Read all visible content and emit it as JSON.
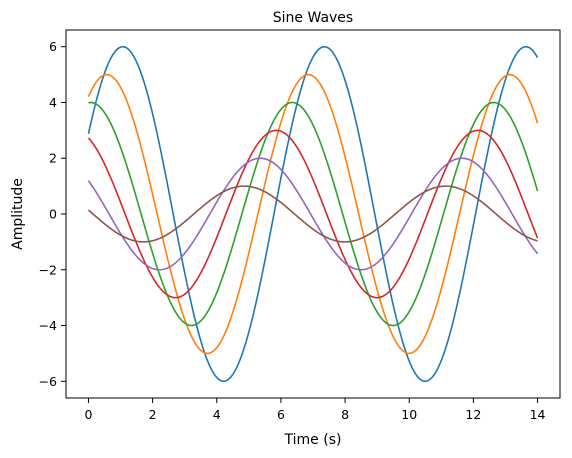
{
  "chart_data": {
    "type": "line",
    "title": "Sine Waves",
    "xlabel": "Time (s)",
    "ylabel": "Amplitude",
    "xlim": [
      -0.7,
      14.7
    ],
    "ylim": [
      -6.6,
      6.6
    ],
    "xticks": [
      0,
      2,
      4,
      6,
      8,
      10,
      12,
      14
    ],
    "yticks": [
      -6,
      -4,
      -2,
      0,
      2,
      4,
      6
    ],
    "ytick_labels": [
      "−6",
      "−4",
      "−2",
      "0",
      "2",
      "4",
      "6"
    ],
    "grid": false,
    "legend": "none",
    "x_domain": [
      0,
      14
    ],
    "series": [
      {
        "amplitude": 6,
        "omega": 1.0,
        "phase": 0.5,
        "color": "#1f77b4"
      },
      {
        "amplitude": 5,
        "omega": 1.0,
        "phase": 1.0,
        "color": "#ff7f0e"
      },
      {
        "amplitude": 4,
        "omega": 1.0,
        "phase": 1.5,
        "color": "#2ca02c"
      },
      {
        "amplitude": 3,
        "omega": 1.0,
        "phase": 2.0,
        "color": "#d62728"
      },
      {
        "amplitude": 2,
        "omega": 1.0,
        "phase": 2.5,
        "color": "#9467bd"
      },
      {
        "amplitude": 1,
        "omega": 1.0,
        "phase": 3.0,
        "color": "#8c564b"
      }
    ]
  }
}
